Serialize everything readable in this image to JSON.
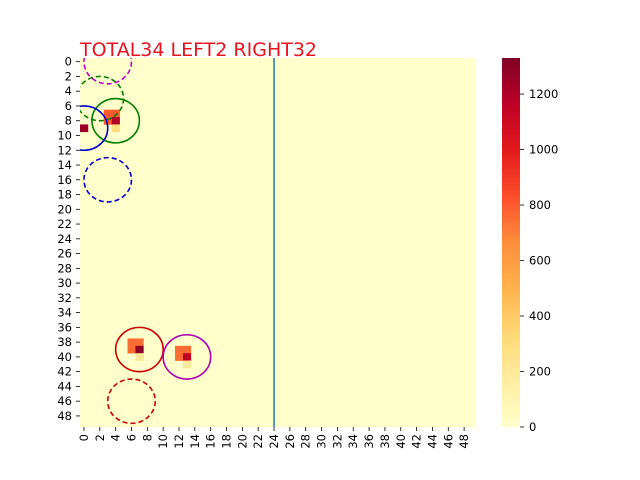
{
  "chart_data": {
    "type": "heatmap",
    "title": "TOTAL34  LEFT2 RIGHT32",
    "title_color": "#e8131f",
    "rows": 50,
    "cols": 50,
    "x_ticks": [
      "0",
      "2",
      "4",
      "6",
      "8",
      "10",
      "12",
      "14",
      "16",
      "18",
      "20",
      "22",
      "24",
      "26",
      "28",
      "30",
      "32",
      "34",
      "36",
      "38",
      "40",
      "42",
      "44",
      "46",
      "48"
    ],
    "y_ticks": [
      "0",
      "2",
      "4",
      "6",
      "8",
      "10",
      "12",
      "14",
      "16",
      "18",
      "20",
      "22",
      "24",
      "26",
      "28",
      "30",
      "32",
      "34",
      "36",
      "38",
      "40",
      "42",
      "44",
      "46",
      "48"
    ],
    "colorbar": {
      "min": 0,
      "max": 1330,
      "ticks": [
        "0",
        "200",
        "400",
        "600",
        "800",
        "1000",
        "1200"
      ],
      "tick_values": [
        0,
        200,
        400,
        600,
        800,
        1000,
        1200
      ],
      "colormap": "YlOrRd"
    },
    "background_value": 0,
    "cells": [
      {
        "row": 7,
        "col": 3,
        "value": 800
      },
      {
        "row": 7,
        "col": 4,
        "value": 800
      },
      {
        "row": 8,
        "col": 3,
        "value": 800
      },
      {
        "row": 8,
        "col": 4,
        "value": 1200
      },
      {
        "row": 9,
        "col": 4,
        "value": 300
      },
      {
        "row": 9,
        "col": 0,
        "value": 1250
      },
      {
        "row": 38,
        "col": 6,
        "value": 750
      },
      {
        "row": 38,
        "col": 7,
        "value": 750
      },
      {
        "row": 39,
        "col": 6,
        "value": 750
      },
      {
        "row": 39,
        "col": 7,
        "value": 1300
      },
      {
        "row": 40,
        "col": 7,
        "value": 200
      },
      {
        "row": 39,
        "col": 12,
        "value": 750
      },
      {
        "row": 39,
        "col": 13,
        "value": 750
      },
      {
        "row": 40,
        "col": 12,
        "value": 750
      },
      {
        "row": 40,
        "col": 13,
        "value": 1150
      },
      {
        "row": 41,
        "col": 13,
        "value": 200
      }
    ],
    "divider": {
      "x": 24.5,
      "color": "#1f77b4"
    },
    "circles": [
      {
        "cx": 4,
        "cy": 8,
        "r": 3,
        "color": "#008000",
        "style": "solid"
      },
      {
        "cx": 2,
        "cy": 5,
        "r": 3,
        "color": "#008000",
        "style": "dashed"
      },
      {
        "cx": 0,
        "cy": 9,
        "r": 3,
        "color": "#0000cc",
        "style": "solid"
      },
      {
        "cx": 3,
        "cy": 16,
        "r": 3,
        "color": "#0000cc",
        "style": "dashed"
      },
      {
        "cx": 3,
        "cy": 0,
        "r": 3,
        "color": "#c000c0",
        "style": "dashed"
      },
      {
        "cx": 7,
        "cy": 39,
        "r": 3,
        "color": "#cc0000",
        "style": "solid"
      },
      {
        "cx": 6,
        "cy": 46,
        "r": 3,
        "color": "#cc0000",
        "style": "dashed"
      },
      {
        "cx": 13,
        "cy": 40,
        "r": 3,
        "color": "#b000b0",
        "style": "solid"
      }
    ]
  }
}
